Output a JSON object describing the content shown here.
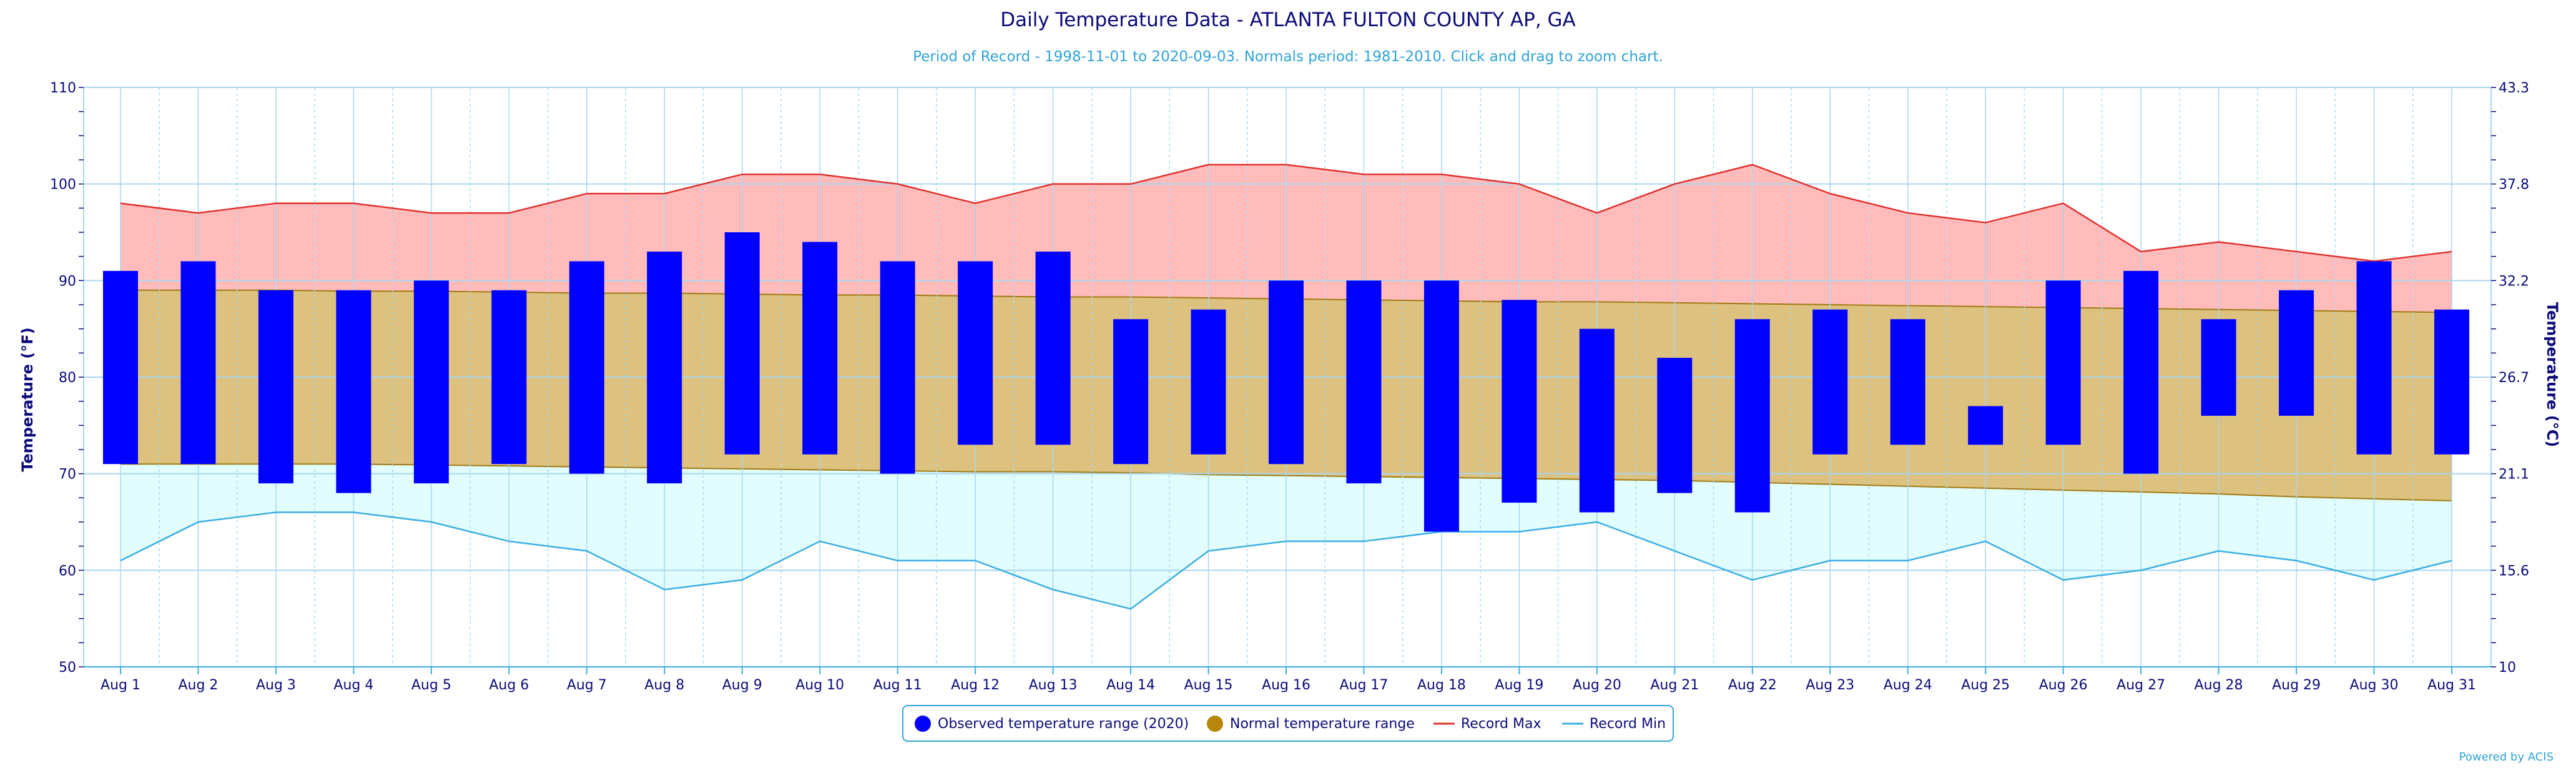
{
  "chart_data": {
    "type": "bar",
    "title": "Daily Temperature Data - ATLANTA FULTON COUNTY AP, GA",
    "subtitle": "Period of Record - 1998-11-01 to 2020-09-03. Normals period: 1981-2010. Click and drag to zoom chart.",
    "ylabel_left": "Temperature (°F)",
    "ylabel_right": "Temperature (°C)",
    "ylim": [
      50,
      110
    ],
    "yticks_left": [
      "50",
      "60",
      "70",
      "80",
      "90",
      "100",
      "110"
    ],
    "yticks_right": [
      "10",
      "15.6",
      "21.1",
      "26.7",
      "32.2",
      "37.8",
      "43.3"
    ],
    "categories": [
      "Aug 1",
      "Aug 2",
      "Aug 3",
      "Aug 4",
      "Aug 5",
      "Aug 6",
      "Aug 7",
      "Aug 8",
      "Aug 9",
      "Aug 10",
      "Aug 11",
      "Aug 12",
      "Aug 13",
      "Aug 14",
      "Aug 15",
      "Aug 16",
      "Aug 17",
      "Aug 18",
      "Aug 19",
      "Aug 20",
      "Aug 21",
      "Aug 22",
      "Aug 23",
      "Aug 24",
      "Aug 25",
      "Aug 26",
      "Aug 27",
      "Aug 28",
      "Aug 29",
      "Aug 30",
      "Aug 31"
    ],
    "series": [
      {
        "name": "Observed temperature range (2020)",
        "type": "range-bar",
        "color": "#0000ff",
        "low": [
          71,
          71,
          69,
          68,
          69,
          71,
          70,
          69,
          72,
          72,
          70,
          73,
          73,
          71,
          72,
          71,
          69,
          64,
          67,
          66,
          68,
          66,
          72,
          73,
          73,
          73,
          70,
          76,
          76,
          72,
          72
        ],
        "high": [
          91,
          92,
          89,
          89,
          90,
          89,
          92,
          93,
          95,
          94,
          92,
          92,
          93,
          86,
          87,
          90,
          90,
          90,
          88,
          85,
          82,
          86,
          87,
          86,
          77,
          90,
          91,
          86,
          89,
          92,
          87
        ]
      },
      {
        "name": "Normal temperature range",
        "type": "range-area",
        "color": "#b8860b",
        "low": [
          71,
          71,
          71,
          71,
          70.9,
          70.8,
          70.7,
          70.6,
          70.5,
          70.4,
          70.3,
          70.2,
          70.2,
          70.1,
          69.9,
          69.8,
          69.7,
          69.6,
          69.5,
          69.4,
          69.3,
          69.1,
          68.9,
          68.7,
          68.5,
          68.3,
          68.1,
          67.9,
          67.6,
          67.4,
          67.2
        ],
        "high": [
          89,
          89,
          89,
          88.9,
          88.9,
          88.8,
          88.7,
          88.7,
          88.6,
          88.5,
          88.5,
          88.4,
          88.3,
          88.3,
          88.2,
          88.1,
          88.0,
          87.9,
          87.8,
          87.8,
          87.7,
          87.6,
          87.5,
          87.4,
          87.3,
          87.2,
          87.1,
          87.0,
          86.9,
          86.8,
          86.7
        ]
      },
      {
        "name": "Record Max",
        "type": "line",
        "color": "#e0302e",
        "values": [
          98,
          97,
          98,
          98,
          97,
          97,
          99,
          99,
          101,
          101,
          100,
          98,
          100,
          100,
          102,
          102,
          101,
          101,
          100,
          97,
          100,
          102,
          99,
          97,
          96,
          98,
          93,
          94,
          93,
          92,
          93
        ]
      },
      {
        "name": "Record Min",
        "type": "line",
        "color": "#3aaee4",
        "values": [
          61,
          65,
          66,
          66,
          65,
          63,
          62,
          58,
          59,
          63,
          61,
          61,
          58,
          56,
          62,
          63,
          63,
          64,
          64,
          65,
          62,
          59,
          61,
          61,
          63,
          59,
          60,
          62,
          61,
          59,
          61
        ]
      }
    ],
    "grid": true,
    "legend_position": "bottom-center",
    "credit": "Powered by ACIS",
    "colors": {
      "record_band": "#ffbcba",
      "normal_band": "#dcc17f",
      "min_band": "#e1fdfd",
      "grid": "#a8d6f0",
      "text": "#0b0b7a"
    }
  }
}
